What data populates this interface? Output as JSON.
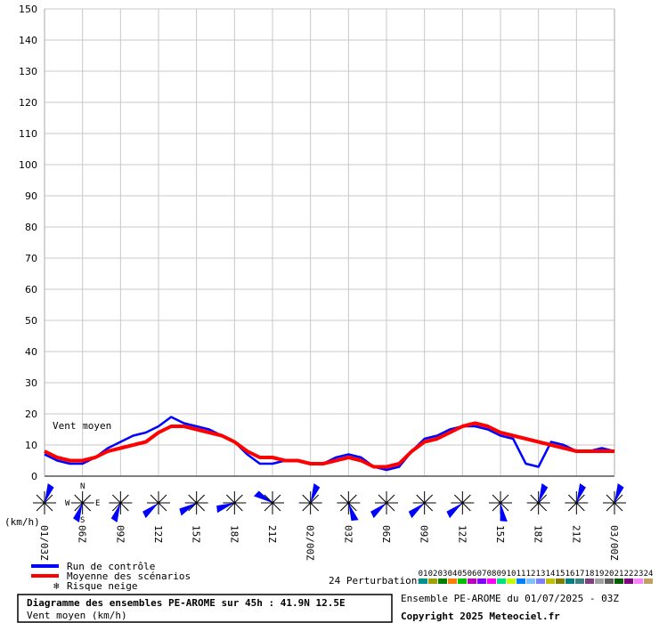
{
  "chart_data": {
    "type": "line",
    "title": "Diagramme des ensembles PE-AROME sur 45h : 41.9N 12.5E",
    "subtitle": "Vent moyen (km/h)",
    "run_info": "Ensemble PE-AROME du 01/07/2025 - 03Z",
    "copyright": "Copyright 2025 Meteociel.fr",
    "annotation": "Vent moyen",
    "y_unit_label": "(km/h)",
    "compass": {
      "n": "N",
      "w": "W",
      "e": "E",
      "s": "S"
    },
    "categories": [
      "01/03Z",
      null,
      null,
      "06Z",
      null,
      null,
      "09Z",
      null,
      null,
      "12Z",
      null,
      null,
      "15Z",
      null,
      null,
      "18Z",
      null,
      null,
      "21Z",
      null,
      null,
      "02/00Z",
      null,
      null,
      "03Z",
      null,
      null,
      "06Z",
      null,
      null,
      "09Z",
      null,
      null,
      "12Z",
      null,
      null,
      "15Z",
      null,
      null,
      "18Z",
      null,
      null,
      "21Z",
      null,
      null,
      "03/00Z"
    ],
    "series": [
      {
        "name": "Run de contrôle",
        "color": "#0000ff",
        "values": [
          7,
          5,
          4,
          4,
          6,
          9,
          11,
          13,
          14,
          16,
          19,
          17,
          16,
          15,
          13,
          11,
          7,
          4,
          4,
          5,
          5,
          4,
          4,
          6,
          7,
          6,
          3,
          2,
          3,
          8,
          12,
          13,
          15,
          16,
          16,
          15,
          13,
          12,
          4,
          3,
          11,
          10,
          8,
          8,
          9,
          8
        ]
      },
      {
        "name": "Moyenne des scénarios",
        "color": "#ff0000",
        "values": [
          8,
          6,
          5,
          5,
          6,
          8,
          9,
          10,
          11,
          14,
          16,
          16,
          15,
          14,
          13,
          11,
          8,
          6,
          6,
          5,
          5,
          4,
          4,
          5,
          6,
          5,
          3,
          3,
          4,
          8,
          11,
          12,
          14,
          16,
          17,
          16,
          14,
          13,
          12,
          11,
          10,
          9,
          8,
          8,
          8,
          8
        ]
      }
    ],
    "legend_extra": "Risque neige",
    "perturbations_label": "24 Perturbations",
    "perturbations": [
      {
        "label": "01",
        "color": "#009090"
      },
      {
        "label": "02",
        "color": "#a0a000"
      },
      {
        "label": "03",
        "color": "#008000"
      },
      {
        "label": "04",
        "color": "#ff8000"
      },
      {
        "label": "05",
        "color": "#00c000"
      },
      {
        "label": "06",
        "color": "#c000c0"
      },
      {
        "label": "07",
        "color": "#8000ff"
      },
      {
        "label": "08",
        "color": "#ff00ff"
      },
      {
        "label": "09",
        "color": "#00e080"
      },
      {
        "label": "10",
        "color": "#c0ff00"
      },
      {
        "label": "11",
        "color": "#0080ff"
      },
      {
        "label": "12",
        "color": "#80c0ff"
      },
      {
        "label": "13",
        "color": "#8080ff"
      },
      {
        "label": "14",
        "color": "#c0c000"
      },
      {
        "label": "15",
        "color": "#808000"
      },
      {
        "label": "16",
        "color": "#008080"
      },
      {
        "label": "17",
        "color": "#408080"
      },
      {
        "label": "18",
        "color": "#804080"
      },
      {
        "label": "19",
        "color": "#a0a0a0"
      },
      {
        "label": "20",
        "color": "#606060"
      },
      {
        "label": "21",
        "color": "#006000"
      },
      {
        "label": "22",
        "color": "#800080"
      },
      {
        "label": "23",
        "color": "#ff80ff"
      },
      {
        "label": "24",
        "color": "#c0a060"
      }
    ],
    "ylim": [
      0,
      150
    ],
    "yticks": [
      0,
      10,
      20,
      30,
      40,
      50,
      60,
      70,
      80,
      90,
      100,
      110,
      120,
      130,
      140,
      150
    ],
    "grid": true
  }
}
